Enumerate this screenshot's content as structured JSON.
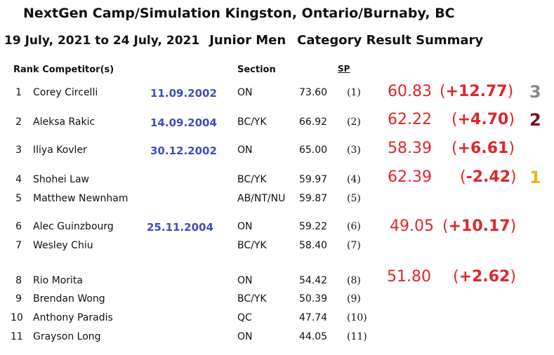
{
  "header": {
    "title_line1": "NextGen Camp/Simulation  Kingston, Ontario/Burnaby, BC",
    "date_range": "19 July, 2021 to 24 July, 2021",
    "category": "Junior Men",
    "result_label": "Category Result Summary"
  },
  "columns": {
    "rank_competitor": "Rank  Competitor(s)",
    "section": "Section",
    "sp": "SP"
  },
  "rows": [
    {
      "rank": "1",
      "name": "Corey Circelli",
      "dob": "11.09.2002",
      "section": "ON",
      "score": "73.60",
      "sp_place": "(1)"
    },
    {
      "rank": "2",
      "name": "Aleksa Rakic",
      "dob": "14.09.2004",
      "section": "BC/YK",
      "score": "66.92",
      "sp_place": "(2)"
    },
    {
      "rank": "3",
      "name": "Iliya Kovler",
      "dob": "30.12.2002",
      "section": "ON",
      "score": "65.00",
      "sp_place": "(3)"
    },
    {
      "rank": "4",
      "name": "Shohei Law",
      "dob": "",
      "section": "BC/YK",
      "score": "59.97",
      "sp_place": "(4)"
    },
    {
      "rank": "5",
      "name": "Matthew Newnham",
      "dob": "",
      "section": "AB/NT/NU",
      "score": "59.87",
      "sp_place": "(5)"
    },
    {
      "rank": "6",
      "name": "Alec Guinzbourg",
      "dob": "25.11.2004",
      "section": "ON",
      "score": "59.22",
      "sp_place": "(6)"
    },
    {
      "rank": "7",
      "name": "Wesley Chiu",
      "dob": "",
      "section": "BC/YK",
      "score": "58.40",
      "sp_place": "(7)"
    },
    {
      "rank": "8",
      "name": "Rio Morita",
      "dob": "",
      "section": "ON",
      "score": "54.42",
      "sp_place": "(8)"
    },
    {
      "rank": "9",
      "name": "Brendan Wong",
      "dob": "",
      "section": "BC/YK",
      "score": "50.39",
      "sp_place": "(9)"
    },
    {
      "rank": "10",
      "name": "Anthony Paradis",
      "dob": "",
      "section": "QC",
      "score": "47.74",
      "sp_place": "(10)"
    },
    {
      "rank": "11",
      "name": "Grayson Long",
      "dob": "",
      "section": "ON",
      "score": "44.05",
      "sp_place": "(11)"
    }
  ],
  "annotations": [
    {
      "score": "60.83",
      "diff": "+12.77",
      "place": "3",
      "place_color": "#8a8a8a"
    },
    {
      "score": "62.22",
      "diff": "+4.70",
      "place": "2",
      "place_color": "#7a0f1a"
    },
    {
      "score": "58.39",
      "diff": "+6.61",
      "place": "",
      "place_color": ""
    },
    {
      "score": "62.39",
      "diff": "-2.42",
      "place": "1",
      "place_color": "#f2b516"
    },
    {
      "score": "49.05",
      "diff": "+10.17",
      "place": "",
      "place_color": ""
    },
    {
      "score": "51.80",
      "diff": "+2.62",
      "place": "",
      "place_color": ""
    }
  ],
  "colors": {
    "dob": "#3d4ec0",
    "annotation": "#e0252d"
  }
}
